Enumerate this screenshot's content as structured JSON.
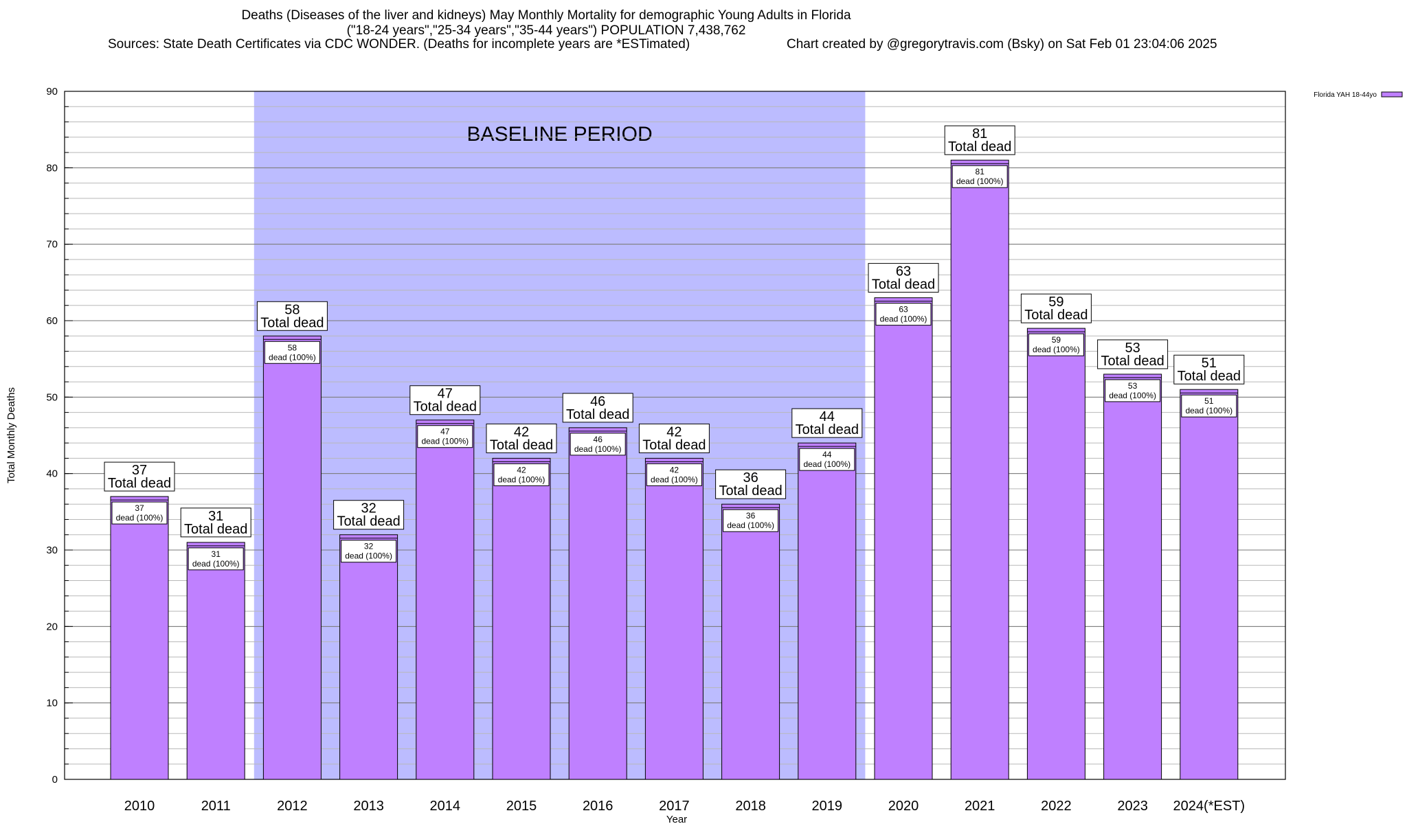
{
  "header": {
    "title_line1": "Deaths (Diseases of the liver and kidneys) May Monthly Mortality for demographic Young Adults in Florida",
    "title_line2": "(\"18-24 years\",\"25-34 years\",\"35-44 years\") POPULATION 7,438,762",
    "sources": "Sources: State Death Certificates via CDC WONDER. (Deaths for incomplete years are *ESTimated)",
    "credit": "Chart created by @gregorytravis.com (Bsky) on Sat Feb 01 23:04:06 2025"
  },
  "chart_data": {
    "type": "bar",
    "xlabel": "Year",
    "ylabel": "Total Monthly Deaths",
    "ylim": [
      0,
      90
    ],
    "yticks": [
      0,
      10,
      20,
      30,
      40,
      50,
      60,
      70,
      80,
      90
    ],
    "minor_grid_step": 2,
    "grid": true,
    "legend_position": "top-right",
    "categories": [
      "2010",
      "2011",
      "2012",
      "2013",
      "2014",
      "2015",
      "2016",
      "2017",
      "2018",
      "2019",
      "2020",
      "2021",
      "2022",
      "2023",
      "2024(*EST)"
    ],
    "series": [
      {
        "name": "Florida YAH 18-44yo",
        "color": "#bf80ff",
        "values": [
          37,
          31,
          58,
          32,
          47,
          42,
          46,
          42,
          36,
          44,
          63,
          81,
          59,
          53,
          51
        ]
      }
    ],
    "top_label_suffix": "Total dead",
    "inner_label_suffix": "dead (100%)",
    "baseline_period": {
      "label": "BASELINE PERIOD",
      "start": "2012",
      "end": "2019",
      "color": "#bcbcff"
    }
  }
}
